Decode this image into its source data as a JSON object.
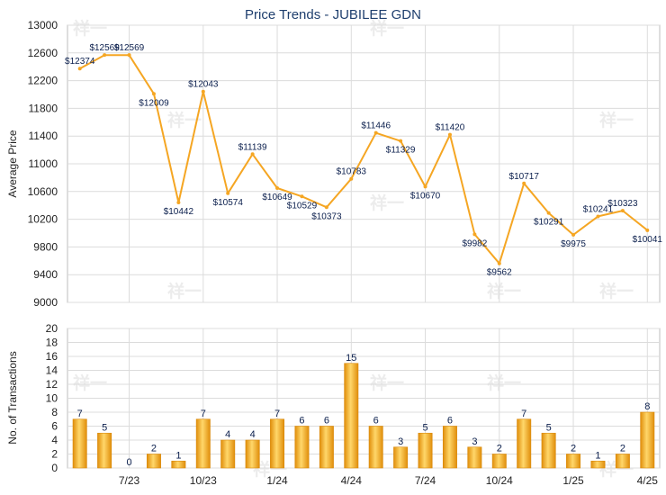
{
  "chart_data": [
    {
      "type": "line",
      "title": "Price Trends - JUBILEE GDN",
      "xlabel": "",
      "ylabel": "Average Price",
      "ylim": [
        9000,
        13000
      ],
      "yticks": [
        "9000",
        "9400",
        "9800",
        "10200",
        "10600",
        "11000",
        "11400",
        "11800",
        "12200",
        "12600",
        "13000"
      ],
      "color": "#f5a623",
      "grid": true,
      "values": [
        12374,
        12569,
        12569,
        12009,
        10442,
        12043,
        10574,
        11139,
        10649,
        10529,
        10373,
        10783,
        11446,
        11329,
        10670,
        11420,
        9982,
        9562,
        10717,
        10291,
        9975,
        10241,
        10323,
        10041
      ],
      "labels": [
        "$12374",
        "$12569",
        "$12569",
        "$12009",
        "$10442",
        "$12043",
        "$10574",
        "$11139",
        "$10649",
        "$10529",
        "$10373",
        "$10783",
        "$11446",
        "$11329",
        "$10670",
        "$11420",
        "$9982",
        "$9562",
        "$10717",
        "$10291",
        "$9975",
        "$10241",
        "$10323",
        "$10041"
      ]
    },
    {
      "type": "bar",
      "xlabel": "",
      "ylabel": "No. of Transactions",
      "ylim": [
        0,
        20
      ],
      "yticks": [
        "0",
        "2",
        "4",
        "6",
        "8",
        "10",
        "12",
        "14",
        "16",
        "18",
        "20"
      ],
      "color": "#f5a623",
      "grid": true,
      "values": [
        7,
        5,
        0,
        2,
        1,
        7,
        4,
        4,
        7,
        6,
        6,
        15,
        6,
        3,
        5,
        6,
        3,
        2,
        7,
        5,
        2,
        1,
        2,
        8
      ],
      "xticks": [
        {
          "label": "7/23",
          "at": 2
        },
        {
          "label": "10/23",
          "at": 5
        },
        {
          "label": "1/24",
          "at": 8
        },
        {
          "label": "4/24",
          "at": 11
        },
        {
          "label": "7/24",
          "at": 14
        },
        {
          "label": "10/24",
          "at": 17
        },
        {
          "label": "1/25",
          "at": 20
        },
        {
          "label": "4/25",
          "at": 23
        }
      ]
    }
  ],
  "watermark": "祥一"
}
